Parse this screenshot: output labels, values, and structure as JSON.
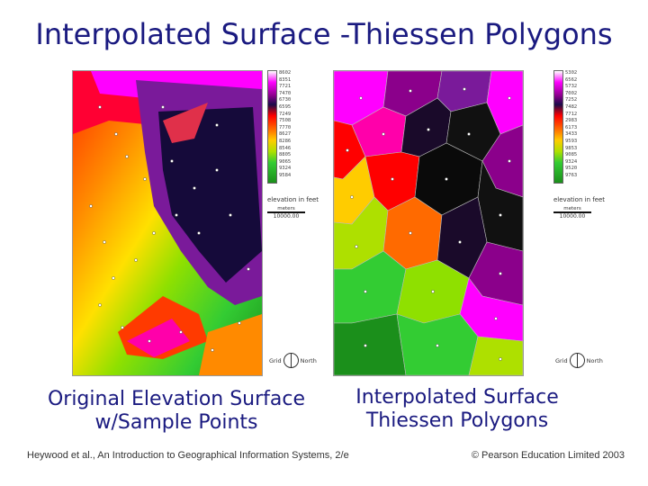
{
  "title": "Interpolated Surface -Thiessen Polygons",
  "left_panel": {
    "legend_ticks": [
      "8602",
      "8351",
      "7721",
      "7470",
      "6730",
      "6595",
      "7249",
      "7508",
      "7770",
      "8627",
      "8286",
      "8546",
      "8805",
      "9065",
      "9324",
      "9584"
    ],
    "legend_label": "elevation in feet",
    "scale_label": "meters",
    "scale_distance": "10000.00",
    "compass_grid": "Grid",
    "compass_north": "North",
    "caption_line1": "Original Elevation Surface",
    "caption_line2": "w/Sample Points"
  },
  "right_panel": {
    "legend_ticks": [
      "5302",
      "6562",
      "5732",
      "7002",
      "7252",
      "7482",
      "7712",
      "2983",
      "6173",
      "3433",
      "9593",
      "9853",
      "9085",
      "9324",
      "9520",
      "9763"
    ],
    "legend_label": "elevation in feet",
    "scale_label": "meters",
    "scale_distance": "10000.00",
    "compass_grid": "Grid",
    "compass_north": "North",
    "caption_line1": "Interpolated Surface",
    "caption_line2": "Thiessen Polygons"
  },
  "footer": {
    "citation": "Heywood et al., An Introduction to Geographical Information Systems, 2/e",
    "copyright": "© Pearson Education Limited 2003"
  },
  "colors": {
    "title": "#1a1a80",
    "ramp": [
      "#ffffff",
      "#ff00ff",
      "#8b008b",
      "#1a0a4a",
      "#ff0000",
      "#ff6a00",
      "#ffcc00",
      "#aee000",
      "#33cc33",
      "#1b8f1b"
    ]
  }
}
